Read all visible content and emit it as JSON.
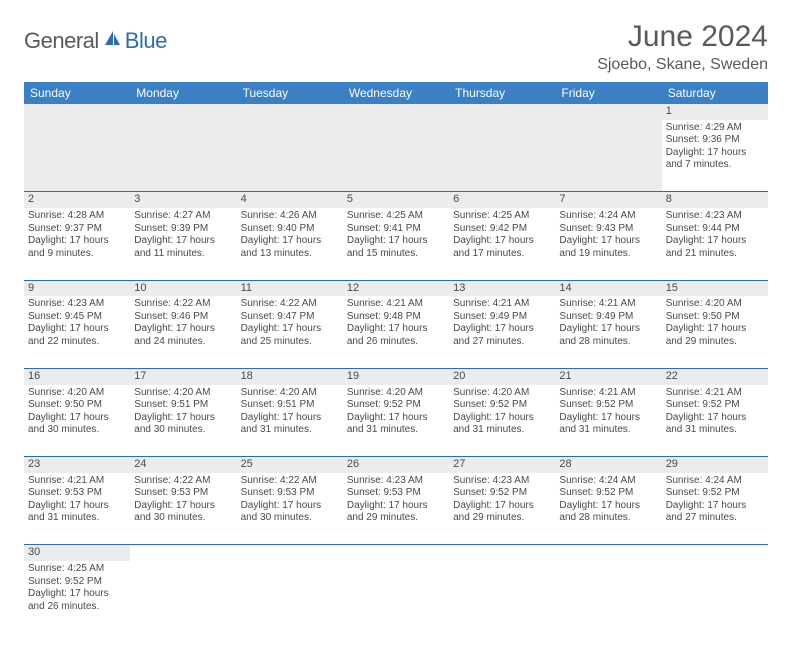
{
  "logo": {
    "text1": "General",
    "text2": "Blue",
    "icon_color": "#2d6bb5"
  },
  "title": "June 2024",
  "location": "Sjoebo, Skane, Sweden",
  "colors": {
    "header_bg": "#3b7fc4",
    "header_text": "#ffffff",
    "daynum_bg": "#ececec",
    "cell_border": "#2d6bb5",
    "text": "#4a4a4a",
    "title_text": "#5a5a5a"
  },
  "weekdays": [
    "Sunday",
    "Monday",
    "Tuesday",
    "Wednesday",
    "Thursday",
    "Friday",
    "Saturday"
  ],
  "weeks": [
    [
      null,
      null,
      null,
      null,
      null,
      null,
      {
        "n": "1",
        "sr": "4:29 AM",
        "ss": "9:36 PM",
        "dl": "17 hours and 7 minutes."
      }
    ],
    [
      {
        "n": "2",
        "sr": "4:28 AM",
        "ss": "9:37 PM",
        "dl": "17 hours and 9 minutes."
      },
      {
        "n": "3",
        "sr": "4:27 AM",
        "ss": "9:39 PM",
        "dl": "17 hours and 11 minutes."
      },
      {
        "n": "4",
        "sr": "4:26 AM",
        "ss": "9:40 PM",
        "dl": "17 hours and 13 minutes."
      },
      {
        "n": "5",
        "sr": "4:25 AM",
        "ss": "9:41 PM",
        "dl": "17 hours and 15 minutes."
      },
      {
        "n": "6",
        "sr": "4:25 AM",
        "ss": "9:42 PM",
        "dl": "17 hours and 17 minutes."
      },
      {
        "n": "7",
        "sr": "4:24 AM",
        "ss": "9:43 PM",
        "dl": "17 hours and 19 minutes."
      },
      {
        "n": "8",
        "sr": "4:23 AM",
        "ss": "9:44 PM",
        "dl": "17 hours and 21 minutes."
      }
    ],
    [
      {
        "n": "9",
        "sr": "4:23 AM",
        "ss": "9:45 PM",
        "dl": "17 hours and 22 minutes."
      },
      {
        "n": "10",
        "sr": "4:22 AM",
        "ss": "9:46 PM",
        "dl": "17 hours and 24 minutes."
      },
      {
        "n": "11",
        "sr": "4:22 AM",
        "ss": "9:47 PM",
        "dl": "17 hours and 25 minutes."
      },
      {
        "n": "12",
        "sr": "4:21 AM",
        "ss": "9:48 PM",
        "dl": "17 hours and 26 minutes."
      },
      {
        "n": "13",
        "sr": "4:21 AM",
        "ss": "9:49 PM",
        "dl": "17 hours and 27 minutes."
      },
      {
        "n": "14",
        "sr": "4:21 AM",
        "ss": "9:49 PM",
        "dl": "17 hours and 28 minutes."
      },
      {
        "n": "15",
        "sr": "4:20 AM",
        "ss": "9:50 PM",
        "dl": "17 hours and 29 minutes."
      }
    ],
    [
      {
        "n": "16",
        "sr": "4:20 AM",
        "ss": "9:50 PM",
        "dl": "17 hours and 30 minutes."
      },
      {
        "n": "17",
        "sr": "4:20 AM",
        "ss": "9:51 PM",
        "dl": "17 hours and 30 minutes."
      },
      {
        "n": "18",
        "sr": "4:20 AM",
        "ss": "9:51 PM",
        "dl": "17 hours and 31 minutes."
      },
      {
        "n": "19",
        "sr": "4:20 AM",
        "ss": "9:52 PM",
        "dl": "17 hours and 31 minutes."
      },
      {
        "n": "20",
        "sr": "4:20 AM",
        "ss": "9:52 PM",
        "dl": "17 hours and 31 minutes."
      },
      {
        "n": "21",
        "sr": "4:21 AM",
        "ss": "9:52 PM",
        "dl": "17 hours and 31 minutes."
      },
      {
        "n": "22",
        "sr": "4:21 AM",
        "ss": "9:52 PM",
        "dl": "17 hours and 31 minutes."
      }
    ],
    [
      {
        "n": "23",
        "sr": "4:21 AM",
        "ss": "9:53 PM",
        "dl": "17 hours and 31 minutes."
      },
      {
        "n": "24",
        "sr": "4:22 AM",
        "ss": "9:53 PM",
        "dl": "17 hours and 30 minutes."
      },
      {
        "n": "25",
        "sr": "4:22 AM",
        "ss": "9:53 PM",
        "dl": "17 hours and 30 minutes."
      },
      {
        "n": "26",
        "sr": "4:23 AM",
        "ss": "9:53 PM",
        "dl": "17 hours and 29 minutes."
      },
      {
        "n": "27",
        "sr": "4:23 AM",
        "ss": "9:52 PM",
        "dl": "17 hours and 29 minutes."
      },
      {
        "n": "28",
        "sr": "4:24 AM",
        "ss": "9:52 PM",
        "dl": "17 hours and 28 minutes."
      },
      {
        "n": "29",
        "sr": "4:24 AM",
        "ss": "9:52 PM",
        "dl": "17 hours and 27 minutes."
      }
    ],
    [
      {
        "n": "30",
        "sr": "4:25 AM",
        "ss": "9:52 PM",
        "dl": "17 hours and 26 minutes."
      },
      null,
      null,
      null,
      null,
      null,
      null
    ]
  ],
  "labels": {
    "sunrise": "Sunrise:",
    "sunset": "Sunset:",
    "daylight": "Daylight:"
  }
}
